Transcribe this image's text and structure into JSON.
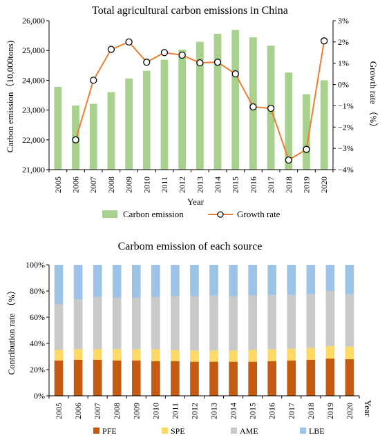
{
  "chart_data": [
    {
      "type": "bar+line",
      "title": "Total agricultural carbon emissions in China",
      "xlabel": "Year",
      "ylabel": "Carbon emission（10,000tons)",
      "y2label": "Growth rate （%）",
      "categories": [
        "2005",
        "2006",
        "2007",
        "2008",
        "2009",
        "2010",
        "2011",
        "2012",
        "2013",
        "2014",
        "2015",
        "2016",
        "2017",
        "2018",
        "2019",
        "2020"
      ],
      "ylim": [
        21000,
        26000
      ],
      "yticks": [
        21000,
        22000,
        23000,
        24000,
        25000,
        26000
      ],
      "ytick_labels": [
        "21,000",
        "22,000",
        "23,000",
        "24,000",
        "25,000",
        "26,000"
      ],
      "y2lim": [
        -4,
        3
      ],
      "y2ticks": [
        -4,
        -3,
        -2,
        -1,
        0,
        1,
        2,
        3
      ],
      "y2tick_labels": [
        "−4%",
        "−3%",
        "−2%",
        "−1%",
        "0%",
        "1%",
        "2%",
        "3%"
      ],
      "series": [
        {
          "name": "Carbon emission",
          "kind": "bar",
          "axis": "left",
          "color": "#a9d18e",
          "values": [
            23780,
            23150,
            23210,
            23600,
            24060,
            24320,
            24690,
            25030,
            25290,
            25560,
            25690,
            25440,
            25160,
            24260,
            23530,
            24000
          ]
        },
        {
          "name": "Growth rate",
          "kind": "line",
          "axis": "right",
          "color": "#ed7d31",
          "x": [
            "2006",
            "2007",
            "2008",
            "2009",
            "2010",
            "2011",
            "2012",
            "2013",
            "2014",
            "2015",
            "2016",
            "2017",
            "2018",
            "2019",
            "2020"
          ],
          "values": [
            -2.6,
            0.2,
            1.65,
            2.0,
            1.05,
            1.5,
            1.38,
            1.02,
            1.05,
            0.5,
            -1.05,
            -1.12,
            -3.55,
            -3.05,
            2.05
          ]
        }
      ],
      "legend": [
        "Carbon emission",
        "Growth rate"
      ],
      "legend_position": "bottom"
    },
    {
      "type": "stacked-bar",
      "title": "Carbom emission of each source",
      "xlabel": "Year",
      "ylabel": "Contribution rate （%）",
      "categories": [
        "2005",
        "2006",
        "2007",
        "2008",
        "2009",
        "2010",
        "2011",
        "2012",
        "2013",
        "2014",
        "2015",
        "2016",
        "2017",
        "2018",
        "2019",
        "2020"
      ],
      "ylim": [
        0,
        100
      ],
      "yticks": [
        0,
        20,
        40,
        60,
        80,
        100
      ],
      "ytick_labels": [
        "0%",
        "20%",
        "40%",
        "60%",
        "80%",
        "100%"
      ],
      "series": [
        {
          "name": "PFE",
          "color": "#c55a11",
          "values": [
            27,
            27.5,
            27.5,
            27,
            27,
            26.5,
            26.5,
            26,
            26,
            26,
            26,
            26.5,
            27,
            27.5,
            28.5,
            28
          ]
        },
        {
          "name": "SPE",
          "color": "#ffd966",
          "values": [
            8,
            8,
            8,
            8.5,
            8.5,
            9,
            8.5,
            8.5,
            8.5,
            8.5,
            9,
            9,
            9,
            9,
            9.5,
            9.5
          ]
        },
        {
          "name": "AME",
          "color": "#c9c9c9",
          "values": [
            35,
            38,
            40,
            39.5,
            39.5,
            40,
            41,
            41.5,
            42,
            41.5,
            41.5,
            41.5,
            41,
            41,
            42,
            40
          ]
        },
        {
          "name": "LBE",
          "color": "#9dc3e6",
          "values": [
            30,
            26.5,
            24.5,
            25,
            25,
            24.5,
            24,
            24,
            23.5,
            24,
            23.5,
            23,
            23,
            22.5,
            20,
            22.5
          ]
        }
      ],
      "legend": [
        "PFE",
        "SPE",
        "AME",
        "LBE"
      ],
      "legend_position": "bottom"
    }
  ]
}
